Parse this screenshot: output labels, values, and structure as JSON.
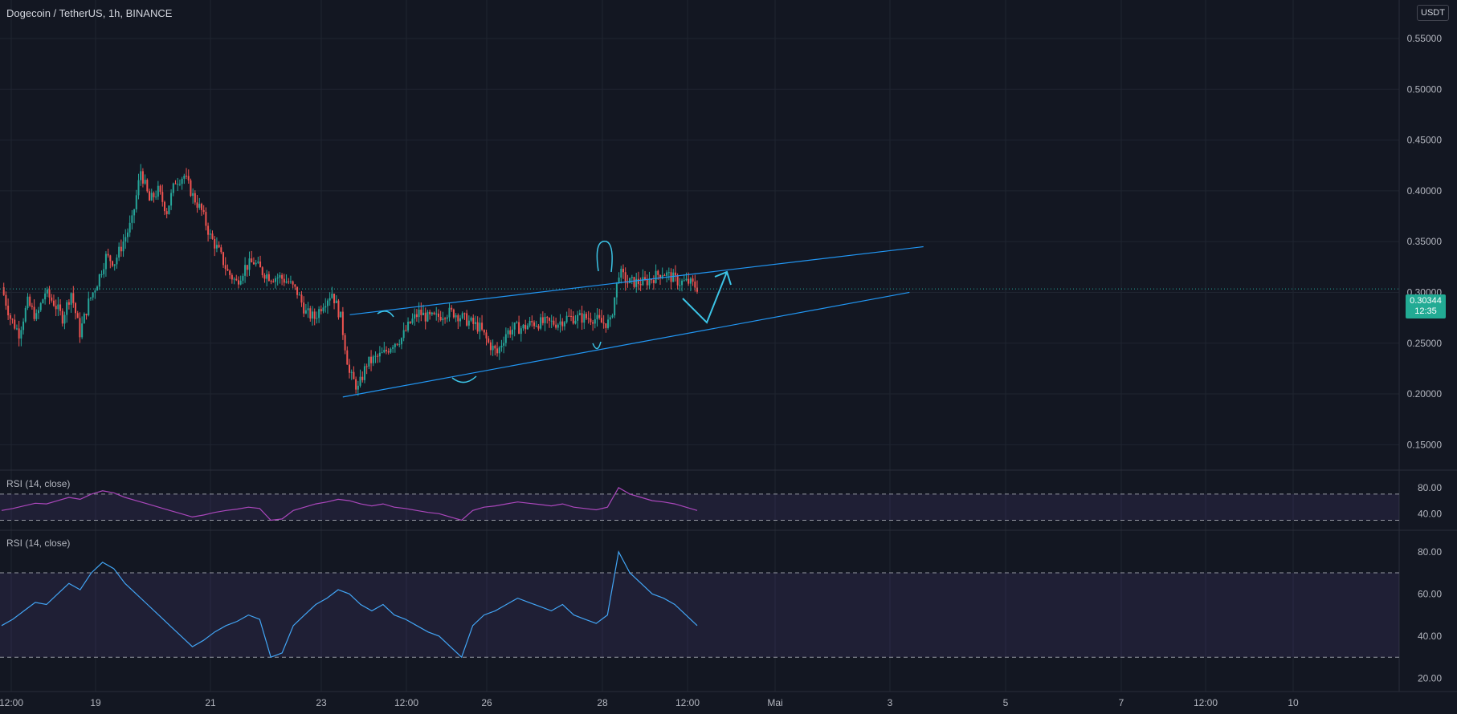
{
  "header": {
    "title": "Dogecoin / TetherUS, 1h, BINANCE"
  },
  "currency_badge": "USDT",
  "last_price": {
    "value": "0.30344",
    "countdown": "12:35",
    "color": "#22ab94"
  },
  "colors": {
    "background": "#131722",
    "grid": "#1f2430",
    "up": "#26a69a",
    "down": "#ef5350",
    "trendline": "#2196f3",
    "rsi_top": "#ab47bc",
    "rsi_bottom": "#42a5f5",
    "rsi_band": "#7e57c2"
  },
  "panes": {
    "rsi_top_label": "RSI (14, close)",
    "rsi_bottom_label": "RSI (14, close)"
  },
  "chart_data": [
    {
      "type": "candlestick",
      "title": "Dogecoin / TetherUS, 1h, BINANCE",
      "ylim": [
        0.125,
        0.58
      ],
      "y_ticks": [
        "0.55000",
        "0.50000",
        "0.45000",
        "0.40000",
        "0.35000",
        "0.30000",
        "0.25000",
        "0.20000",
        "0.15000"
      ],
      "x_ticks": [
        "12:00",
        "19",
        "21",
        "23",
        "12:00",
        "26",
        "28",
        "12:00",
        "Mai",
        "3",
        "5",
        "7",
        "12:00",
        "10"
      ],
      "price_path": [
        [
          0,
          0.305
        ],
        [
          4,
          0.275
        ],
        [
          8,
          0.26
        ],
        [
          12,
          0.29
        ],
        [
          16,
          0.275
        ],
        [
          20,
          0.3
        ],
        [
          24,
          0.29
        ],
        [
          28,
          0.275
        ],
        [
          32,
          0.3
        ],
        [
          36,
          0.26
        ],
        [
          40,
          0.29
        ],
        [
          44,
          0.31
        ],
        [
          48,
          0.335
        ],
        [
          52,
          0.33
        ],
        [
          56,
          0.35
        ],
        [
          60,
          0.37
        ],
        [
          64,
          0.42
        ],
        [
          68,
          0.39
        ],
        [
          72,
          0.4
        ],
        [
          76,
          0.38
        ],
        [
          80,
          0.41
        ],
        [
          84,
          0.415
        ],
        [
          88,
          0.395
        ],
        [
          92,
          0.38
        ],
        [
          96,
          0.355
        ],
        [
          100,
          0.34
        ],
        [
          104,
          0.32
        ],
        [
          108,
          0.31
        ],
        [
          112,
          0.325
        ],
        [
          116,
          0.33
        ],
        [
          120,
          0.32
        ],
        [
          124,
          0.315
        ],
        [
          128,
          0.315
        ],
        [
          132,
          0.31
        ],
        [
          136,
          0.3
        ],
        [
          140,
          0.28
        ],
        [
          144,
          0.275
        ],
        [
          148,
          0.29
        ],
        [
          152,
          0.3
        ],
        [
          156,
          0.275
        ],
        [
          160,
          0.22
        ],
        [
          164,
          0.205
        ],
        [
          168,
          0.23
        ],
        [
          172,
          0.235
        ],
        [
          176,
          0.24
        ],
        [
          180,
          0.25
        ],
        [
          184,
          0.255
        ],
        [
          188,
          0.27
        ],
        [
          192,
          0.28
        ],
        [
          196,
          0.275
        ],
        [
          200,
          0.275
        ],
        [
          204,
          0.28
        ],
        [
          208,
          0.28
        ],
        [
          212,
          0.275
        ],
        [
          216,
          0.27
        ],
        [
          220,
          0.265
        ],
        [
          224,
          0.25
        ],
        [
          228,
          0.24
        ],
        [
          232,
          0.26
        ],
        [
          236,
          0.265
        ],
        [
          240,
          0.265
        ],
        [
          244,
          0.27
        ],
        [
          248,
          0.27
        ],
        [
          252,
          0.27
        ],
        [
          256,
          0.27
        ],
        [
          260,
          0.275
        ],
        [
          264,
          0.275
        ],
        [
          268,
          0.275
        ],
        [
          272,
          0.275
        ],
        [
          276,
          0.27
        ],
        [
          280,
          0.27
        ],
        [
          284,
          0.32
        ],
        [
          288,
          0.31
        ],
        [
          292,
          0.31
        ],
        [
          296,
          0.31
        ],
        [
          300,
          0.315
        ],
        [
          304,
          0.32
        ],
        [
          308,
          0.315
        ],
        [
          312,
          0.31
        ],
        [
          316,
          0.31
        ],
        [
          320,
          0.305
        ]
      ],
      "annotations": {
        "channel_upper": [
          [
            0.25,
            0.278
          ],
          [
            0.66,
            0.345
          ]
        ],
        "channel_lower": [
          [
            0.245,
            0.197
          ],
          [
            0.65,
            0.3
          ]
        ]
      }
    },
    {
      "type": "line",
      "name": "RSI (14, close)",
      "ylim": [
        22,
        92
      ],
      "bands": [
        70,
        30
      ],
      "y_ticks": [
        "80.00",
        "40.00"
      ],
      "values": [
        45,
        48,
        52,
        56,
        55,
        60,
        65,
        62,
        70,
        75,
        72,
        65,
        60,
        55,
        50,
        45,
        40,
        35,
        38,
        42,
        45,
        47,
        50,
        48,
        30,
        32,
        45,
        50,
        55,
        58,
        62,
        60,
        55,
        52,
        55,
        50,
        48,
        45,
        42,
        40,
        35,
        30,
        45,
        50,
        52,
        55,
        58,
        56,
        54,
        52,
        55,
        50,
        48,
        46,
        50,
        80,
        70,
        65,
        60,
        58,
        55,
        50,
        45
      ]
    },
    {
      "type": "line",
      "name": "RSI (14, close)",
      "ylim": [
        16,
        86
      ],
      "bands": [
        70,
        30
      ],
      "y_ticks": [
        "80.00",
        "60.00",
        "40.00",
        "20.00"
      ],
      "values": [
        45,
        48,
        52,
        56,
        55,
        60,
        65,
        62,
        70,
        75,
        72,
        65,
        60,
        55,
        50,
        45,
        40,
        35,
        38,
        42,
        45,
        47,
        50,
        48,
        30,
        32,
        45,
        50,
        55,
        58,
        62,
        60,
        55,
        52,
        55,
        50,
        48,
        45,
        42,
        40,
        35,
        30,
        45,
        50,
        52,
        55,
        58,
        56,
        54,
        52,
        55,
        50,
        48,
        46,
        50,
        80,
        70,
        65,
        60,
        58,
        55,
        50,
        45
      ]
    }
  ]
}
